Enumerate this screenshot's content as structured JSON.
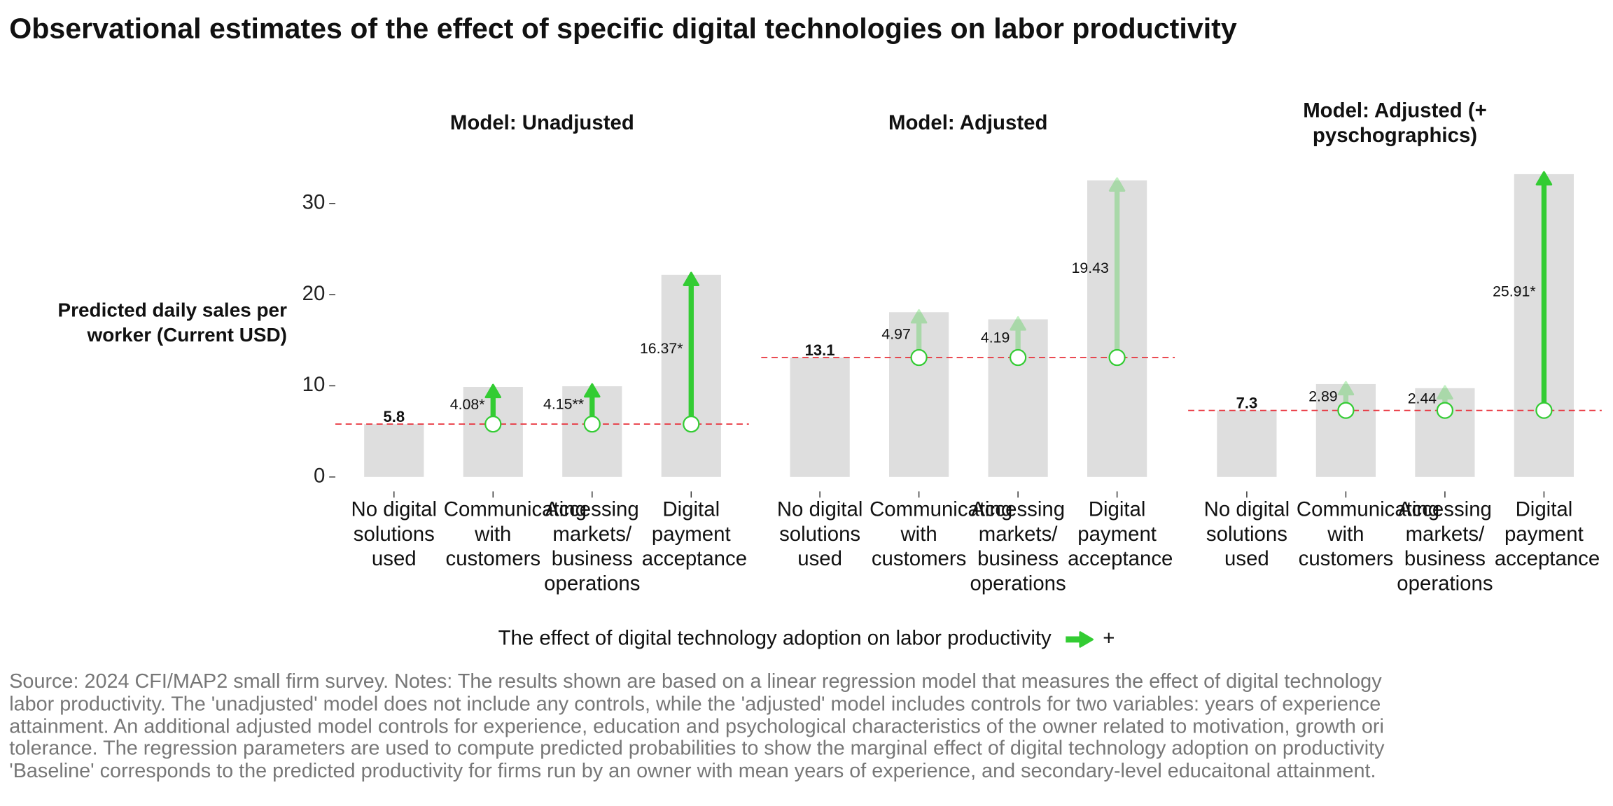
{
  "title": "Observational estimates of the effect of specific digital technologies on labor productivity",
  "y_label": "Predicted daily sales per worker (Current USD)",
  "legend": {
    "title": "The effect of digital technology adoption on labor productivity",
    "entries": [
      "+"
    ],
    "color": "#33cc33"
  },
  "source_lines": [
    "Source: 2024 CFI/MAP2 small firm survey. Notes: The results shown are based on a linear regression model that measures the effect of digital technology",
    "labor productivity. The 'unadjusted' model does not include any controls, while the 'adjusted' model includes controls for two variables: years of experience",
    "attainment. An additional adjusted model controls for experience, education and psychological characteristics of the owner related to motivation, growth ori",
    "tolerance. The regression parameters are used to compute predicted probabilities to show the marginal effect of digital technology adoption on productivity",
    "'Baseline' corresponds to the predicted productivity for firms run by an owner with mean years of experience, and secondary-level educaitonal attainment."
  ],
  "chart_data": [
    {
      "type": "bar",
      "title": "Model: Unadjusted",
      "categories": [
        "No digital solutions used",
        "Communicating with customers",
        "Accessing markets/ business operations",
        "Digital payment acceptance"
      ],
      "values": [
        5.8,
        4.08,
        4.15,
        16.37
      ],
      "value_labels": [
        "5.8",
        "4.08*",
        "4.15**",
        "16.37*"
      ],
      "ylim": [
        -1.3,
        34
      ],
      "yticks": [
        0,
        10,
        20,
        30
      ],
      "bar_color": "#dedede",
      "color": "#33cc33",
      "baseline_color": "#e8303a"
    },
    {
      "type": "bar",
      "title": "Model: Adjusted",
      "categories": [
        "No digital solutions used",
        "Communicating with customers",
        "Accessing markets/ business operations",
        "Digital payment acceptance"
      ],
      "values": [
        13.1,
        4.97,
        4.19,
        19.43
      ],
      "value_labels": [
        "13.1",
        "4.97",
        "4.19",
        "19.43"
      ],
      "ylim": [
        -1.3,
        34
      ],
      "bar_color": "#dedede",
      "color": "#33cc33",
      "baseline_color": "#e8303a"
    },
    {
      "type": "bar",
      "title": "Model: Adjusted (+ pyschographics)",
      "categories": [
        "No digital solutions used",
        "Communicating with customers",
        "Accessing markets/ business operations",
        "Digital payment acceptance"
      ],
      "values": [
        7.3,
        2.89,
        2.44,
        25.91
      ],
      "value_labels": [
        "7.3",
        "2.89",
        "2.44",
        "25.91*"
      ],
      "ylim": [
        -1.3,
        34
      ],
      "bar_color": "#dedede",
      "color": "#33cc33",
      "baseline_color": "#e8303a"
    }
  ]
}
